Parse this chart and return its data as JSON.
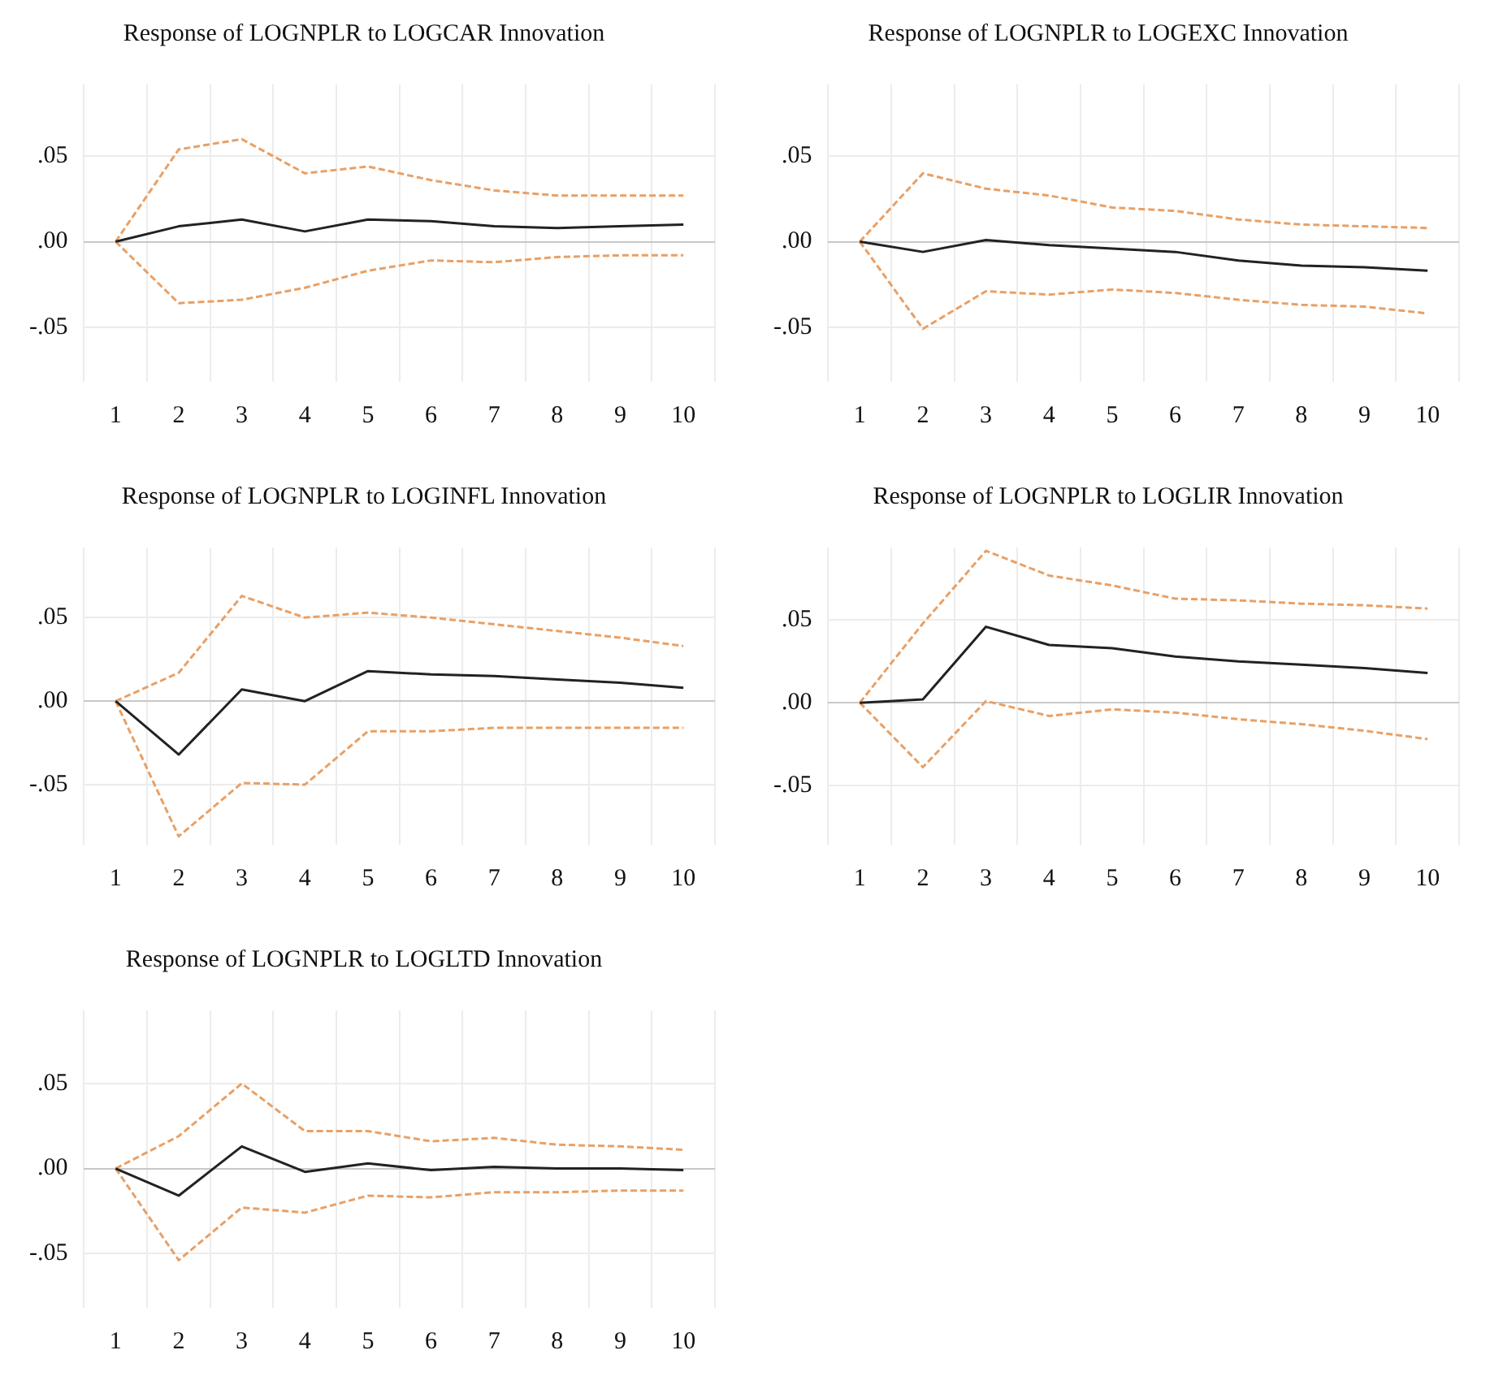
{
  "chart_data": [
    {
      "type": "line",
      "title": "Response of LOGNPLR to LOGCAR Innovation",
      "categories": [
        "1",
        "2",
        "3",
        "4",
        "5",
        "6",
        "7",
        "8",
        "9",
        "10"
      ],
      "ylim": [
        -0.082,
        0.092
      ],
      "yticks": [
        {
          "value": 0.05,
          "label": ".05"
        },
        {
          "value": 0,
          "label": ".00"
        },
        {
          "value": -0.05,
          "label": "-.05"
        }
      ],
      "grid": true,
      "legend": false,
      "series": [
        {
          "color": "#222222",
          "line_style": "solid",
          "values": [
            0,
            0.009,
            0.013,
            0.006,
            0.013,
            0.012,
            0.009,
            0.008,
            0.009,
            0.01
          ]
        },
        {
          "color": "#e8a066",
          "line_style": "dashed",
          "values": [
            0,
            0.054,
            0.06,
            0.04,
            0.044,
            0.036,
            0.03,
            0.027,
            0.027,
            0.027
          ]
        },
        {
          "color": "#e8a066",
          "line_style": "dashed",
          "values": [
            0,
            -0.036,
            -0.034,
            -0.027,
            -0.017,
            -0.011,
            -0.012,
            -0.009,
            -0.008,
            -0.008
          ]
        }
      ]
    },
    {
      "type": "line",
      "title": "Response of LOGNPLR to LOGEXC Innovation",
      "categories": [
        "1",
        "2",
        "3",
        "4",
        "5",
        "6",
        "7",
        "8",
        "9",
        "10"
      ],
      "ylim": [
        -0.082,
        0.092
      ],
      "yticks": [
        {
          "value": 0.05,
          "label": ".05"
        },
        {
          "value": 0,
          "label": ".00"
        },
        {
          "value": -0.05,
          "label": "-.05"
        }
      ],
      "grid": true,
      "legend": false,
      "series": [
        {
          "color": "#222222",
          "line_style": "solid",
          "values": [
            0,
            -0.006,
            0.001,
            -0.002,
            -0.004,
            -0.006,
            -0.011,
            -0.014,
            -0.015,
            -0.017
          ]
        },
        {
          "color": "#e8a066",
          "line_style": "dashed",
          "values": [
            0,
            0.04,
            0.031,
            0.027,
            0.02,
            0.018,
            0.013,
            0.01,
            0.009,
            0.008
          ]
        },
        {
          "color": "#e8a066",
          "line_style": "dashed",
          "values": [
            0,
            -0.051,
            -0.029,
            -0.031,
            -0.028,
            -0.03,
            -0.034,
            -0.037,
            -0.038,
            -0.042
          ]
        }
      ]
    },
    {
      "type": "line",
      "title": "Response of LOGNPLR to LOGINFL Innovation",
      "categories": [
        "1",
        "2",
        "3",
        "4",
        "5",
        "6",
        "7",
        "8",
        "9",
        "10"
      ],
      "ylim": [
        -0.086,
        0.092
      ],
      "yticks": [
        {
          "value": 0.05,
          "label": ".05"
        },
        {
          "value": 0,
          "label": ".00"
        },
        {
          "value": -0.05,
          "label": "-.05"
        }
      ],
      "grid": true,
      "legend": false,
      "series": [
        {
          "color": "#222222",
          "line_style": "solid",
          "values": [
            0,
            -0.032,
            0.007,
            0,
            0.018,
            0.016,
            0.015,
            0.013,
            0.011,
            0.008
          ]
        },
        {
          "color": "#e8a066",
          "line_style": "dashed",
          "values": [
            0,
            0.017,
            0.063,
            0.05,
            0.053,
            0.05,
            0.046,
            0.042,
            0.038,
            0.033
          ]
        },
        {
          "color": "#e8a066",
          "line_style": "dashed",
          "values": [
            0,
            -0.081,
            -0.049,
            -0.05,
            -0.018,
            -0.018,
            -0.016,
            -0.016,
            -0.016,
            -0.016
          ]
        }
      ]
    },
    {
      "type": "line",
      "title": "Response of LOGNPLR to LOGLIR Innovation",
      "categories": [
        "1",
        "2",
        "3",
        "4",
        "5",
        "6",
        "7",
        "8",
        "9",
        "10"
      ],
      "ylim": [
        -0.086,
        0.094
      ],
      "yticks": [
        {
          "value": 0.05,
          "label": ".05"
        },
        {
          "value": 0,
          "label": ".00"
        },
        {
          "value": -0.05,
          "label": "-.05"
        }
      ],
      "grid": true,
      "legend": false,
      "series": [
        {
          "color": "#222222",
          "line_style": "solid",
          "values": [
            0,
            0.002,
            0.046,
            0.035,
            0.033,
            0.028,
            0.025,
            0.023,
            0.021,
            0.018
          ]
        },
        {
          "color": "#e8a066",
          "line_style": "dashed",
          "values": [
            0,
            0.048,
            0.092,
            0.077,
            0.071,
            0.063,
            0.062,
            0.06,
            0.059,
            0.057
          ]
        },
        {
          "color": "#e8a066",
          "line_style": "dashed",
          "values": [
            0,
            -0.039,
            0.001,
            -0.008,
            -0.004,
            -0.006,
            -0.01,
            -0.013,
            -0.017,
            -0.022
          ]
        }
      ]
    },
    {
      "type": "line",
      "title": "Response of LOGNPLR to LOGLTD Innovation",
      "categories": [
        "1",
        "2",
        "3",
        "4",
        "5",
        "6",
        "7",
        "8",
        "9",
        "10"
      ],
      "ylim": [
        -0.082,
        0.093
      ],
      "yticks": [
        {
          "value": 0.05,
          "label": ".05"
        },
        {
          "value": 0,
          "label": ".00"
        },
        {
          "value": -0.05,
          "label": "-.05"
        }
      ],
      "grid": true,
      "legend": false,
      "series": [
        {
          "color": "#222222",
          "line_style": "solid",
          "values": [
            0,
            -0.016,
            0.013,
            -0.002,
            0.003,
            -0.001,
            0.001,
            0,
            0,
            -0.001
          ]
        },
        {
          "color": "#e8a066",
          "line_style": "dashed",
          "values": [
            0,
            0.019,
            0.05,
            0.022,
            0.022,
            0.016,
            0.018,
            0.014,
            0.013,
            0.011
          ]
        },
        {
          "color": "#e8a066",
          "line_style": "dashed",
          "values": [
            0,
            -0.054,
            -0.023,
            -0.026,
            -0.016,
            -0.017,
            -0.014,
            -0.014,
            -0.013,
            -0.013
          ]
        }
      ]
    }
  ]
}
